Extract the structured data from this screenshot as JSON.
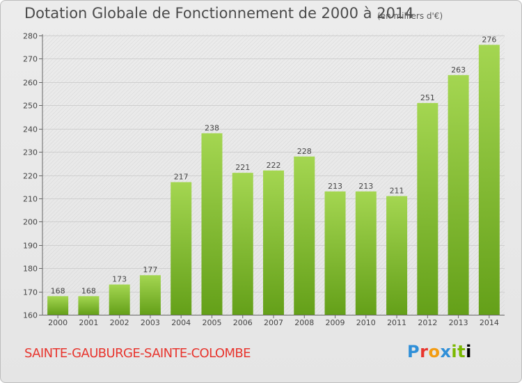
{
  "header": {
    "title": "Dotation Globale de Fonctionnement de 2000 à 2014",
    "subtitle": "(en milliers d'€)"
  },
  "footer": {
    "commune": "SAINTE-GAUBURGE-SAINTE-COLOMBE",
    "logo": "Proxiti"
  },
  "colors": {
    "bar_top": "#a4d651",
    "bar_bottom": "#64a019",
    "footer_text": "#e8352e"
  },
  "chart_data": {
    "type": "bar",
    "title": "Dotation Globale de Fonctionnement de 2000 à 2014",
    "subtitle": "(en milliers d'€)",
    "categories": [
      "2000",
      "2001",
      "2002",
      "2003",
      "2004",
      "2005",
      "2006",
      "2007",
      "2008",
      "2009",
      "2010",
      "2011",
      "2012",
      "2013",
      "2014"
    ],
    "values": [
      168,
      168,
      173,
      177,
      217,
      238,
      221,
      222,
      228,
      213,
      213,
      211,
      251,
      263,
      276
    ],
    "ylim": [
      160,
      280
    ],
    "yticks": [
      160,
      170,
      180,
      190,
      200,
      210,
      220,
      230,
      240,
      250,
      260,
      270,
      280
    ],
    "grid": true
  }
}
